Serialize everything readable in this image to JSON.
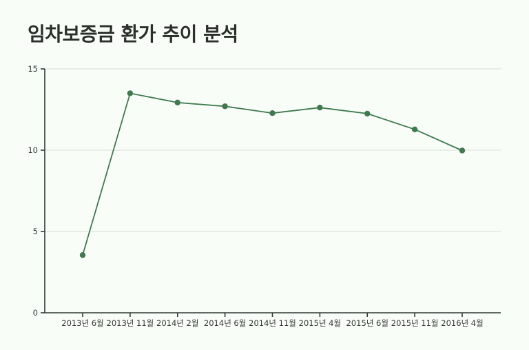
{
  "chart_data": {
    "type": "line",
    "title": "임차보증금 환가 추이 분석",
    "categories": [
      "2013년 6월",
      "2013년 11월",
      "2014년 2월",
      "2014년 6월",
      "2014년 11월",
      "2015년 4월",
      "2015년 6월",
      "2015년 11월",
      "2016년 4월"
    ],
    "series": [
      {
        "values": [
          3.55,
          13.5,
          12.93,
          12.7,
          12.28,
          12.62,
          12.25,
          11.28,
          9.98
        ]
      }
    ],
    "yticks": [
      0,
      5,
      10,
      15
    ],
    "ylim": [
      0,
      15
    ],
    "grid": true,
    "color": "#3d7a4c"
  }
}
